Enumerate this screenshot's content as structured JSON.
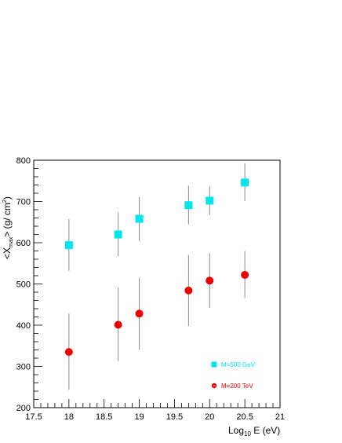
{
  "chart_data": {
    "type": "scatter",
    "xlabel": "Log10 E (eV)",
    "ylabel": "<Xmax> (g/ cm2)",
    "xlim": [
      17.5,
      21
    ],
    "ylim": [
      200,
      800
    ],
    "x_ticks": [
      "17.5",
      "18",
      "18.5",
      "19",
      "19.5",
      "20",
      "20.5",
      "21"
    ],
    "y_ticks": [
      "200",
      "300",
      "400",
      "500",
      "600",
      "700",
      "800"
    ],
    "grid": false,
    "legend_position": "bottom-right",
    "series": [
      {
        "name": "M=500 GeV",
        "marker": "square",
        "color": "#00e5ee",
        "points": [
          {
            "x": 18.0,
            "y": 594,
            "err_lo": 532,
            "err_hi": 657
          },
          {
            "x": 18.7,
            "y": 620,
            "err_lo": 567,
            "err_hi": 673
          },
          {
            "x": 19.0,
            "y": 658,
            "err_lo": 604,
            "err_hi": 711
          },
          {
            "x": 19.7,
            "y": 691,
            "err_lo": 644,
            "err_hi": 738
          },
          {
            "x": 20.0,
            "y": 702,
            "err_lo": 667,
            "err_hi": 737
          },
          {
            "x": 20.5,
            "y": 746,
            "err_lo": 701,
            "err_hi": 792
          }
        ]
      },
      {
        "name": "M=200 TeV",
        "marker": "circle",
        "color": "#ee0000",
        "points": [
          {
            "x": 18.0,
            "y": 335,
            "err_lo": 243,
            "err_hi": 428
          },
          {
            "x": 18.7,
            "y": 401,
            "err_lo": 313,
            "err_hi": 491
          },
          {
            "x": 19.0,
            "y": 428,
            "err_lo": 340,
            "err_hi": 515
          },
          {
            "x": 19.7,
            "y": 484,
            "err_lo": 398,
            "err_hi": 570
          },
          {
            "x": 20.0,
            "y": 508,
            "err_lo": 442,
            "err_hi": 575
          },
          {
            "x": 20.5,
            "y": 522,
            "err_lo": 466,
            "err_hi": 580
          }
        ]
      }
    ]
  },
  "axis": {
    "x_title_main": "Log",
    "x_title_sub": "10",
    "x_title_rest": " E (eV)",
    "y_title_open": "<X",
    "y_title_sub": "max",
    "y_title_mid": "> (g/ cm",
    "y_title_sup": "2",
    "y_title_close": ")"
  },
  "legend": [
    {
      "label": "M=500 GeV",
      "color": "#00e5ee",
      "marker": "square"
    },
    {
      "label": "M=200 TeV",
      "color": "#ee0000",
      "marker": "circle"
    }
  ]
}
